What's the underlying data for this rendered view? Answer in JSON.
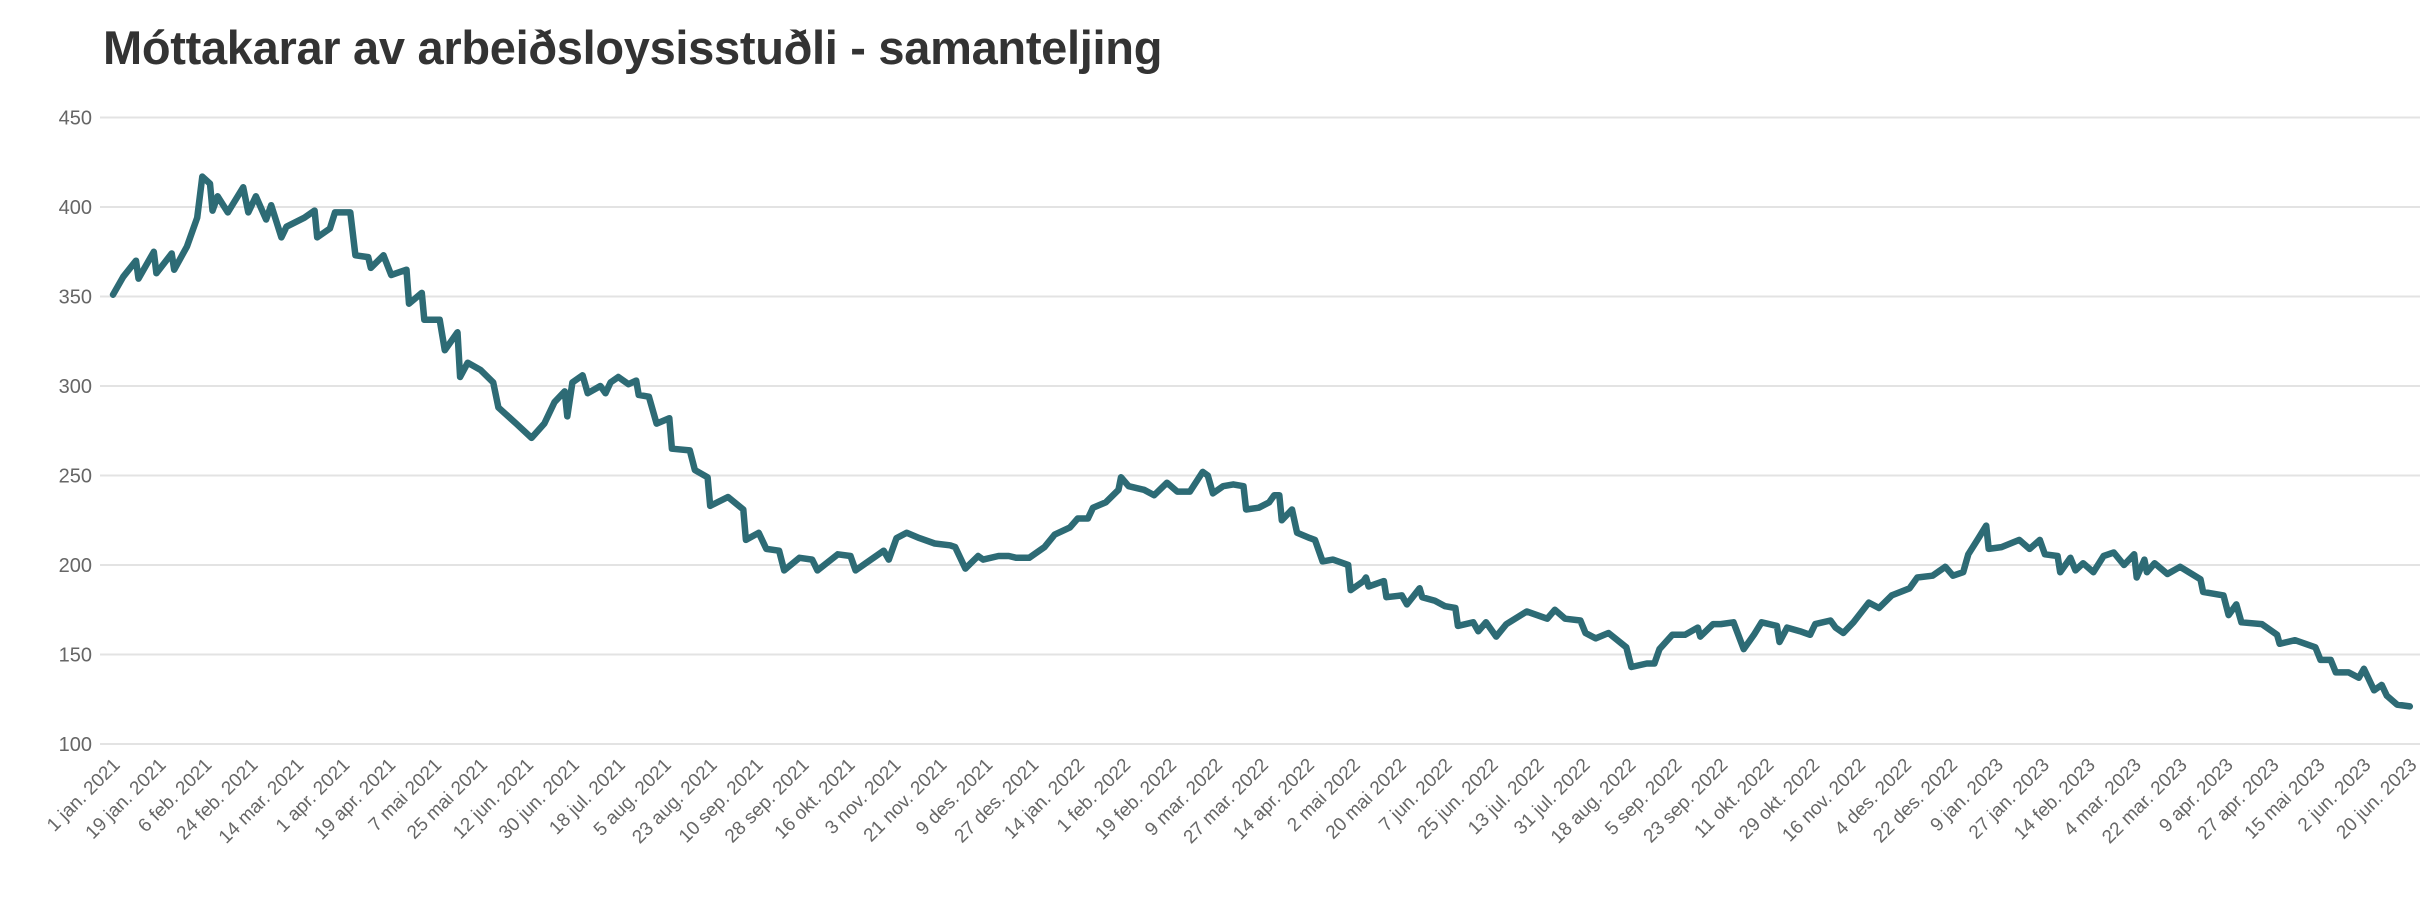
{
  "chart_data": {
    "type": "line",
    "title": "Móttakarar av arbeiðsloysisstuðli - samanteljing",
    "xlabel": "",
    "ylabel": "",
    "ylim": [
      100,
      450
    ],
    "yticks": [
      100,
      150,
      200,
      250,
      300,
      350,
      400,
      450
    ],
    "grid": true,
    "legend": "none",
    "line_color": "#2d6b75",
    "grid_color": "#e3e3e3",
    "xtick_dates": [
      "2021-01-01",
      "2021-01-19",
      "2021-02-06",
      "2021-02-24",
      "2021-03-14",
      "2021-04-01",
      "2021-04-19",
      "2021-05-07",
      "2021-05-25",
      "2021-06-12",
      "2021-06-30",
      "2021-07-18",
      "2021-08-05",
      "2021-08-23",
      "2021-09-10",
      "2021-09-28",
      "2021-10-16",
      "2021-11-03",
      "2021-11-21",
      "2021-12-09",
      "2021-12-27",
      "2022-01-14",
      "2022-02-01",
      "2022-02-19",
      "2022-03-09",
      "2022-03-27",
      "2022-04-14",
      "2022-05-02",
      "2022-05-20",
      "2022-06-07",
      "2022-06-25",
      "2022-07-13",
      "2022-07-31",
      "2022-08-18",
      "2022-09-05",
      "2022-09-23",
      "2022-10-11",
      "2022-10-29",
      "2022-11-16",
      "2022-12-04",
      "2022-12-22",
      "2023-01-09",
      "2023-01-27",
      "2023-02-14",
      "2023-03-04",
      "2023-03-22",
      "2023-04-09",
      "2023-04-27",
      "2023-05-15",
      "2023-06-02",
      "2023-06-20"
    ],
    "xtick_labels": [
      "1 jan. 2021",
      "19 jan. 2021",
      "6 feb. 2021",
      "24 feb. 2021",
      "14 mar. 2021",
      "1 apr. 2021",
      "19 apr. 2021",
      "7 mai 2021",
      "25 mai 2021",
      "12 jun. 2021",
      "30 jun. 2021",
      "18 jul. 2021",
      "5 aug. 2021",
      "23 aug. 2021",
      "10 sep. 2021",
      "28 sep. 2021",
      "16 okt. 2021",
      "3 nov. 2021",
      "21 nov. 2021",
      "9 des. 2021",
      "27 des. 2021",
      "14 jan. 2022",
      "1 feb. 2022",
      "19 feb. 2022",
      "9 mar. 2022",
      "27 mar. 2022",
      "14 apr. 2022",
      "2 mai 2022",
      "20 mai 2022",
      "7 jun. 2022",
      "25 jun. 2022",
      "13 jul. 2022",
      "31 jul. 2022",
      "18 aug. 2022",
      "5 sep. 2022",
      "23 sep. 2022",
      "11 okt. 2022",
      "29 okt. 2022",
      "16 nov. 2022",
      "4 des. 2022",
      "22 des. 2022",
      "9 jan. 2023",
      "27 jan. 2023",
      "14 feb. 2023",
      "4 mar. 2023",
      "22 mar. 2023",
      "9 apr. 2023",
      "27 apr. 2023",
      "15 mai 2023",
      "2 jun. 2023",
      "20 jun. 2023"
    ],
    "x": [
      "2021-01-01",
      "2021-01-05",
      "2021-01-10",
      "2021-01-11",
      "2021-01-17",
      "2021-01-18",
      "2021-01-24",
      "2021-01-25",
      "2021-01-30",
      "2021-02-03",
      "2021-02-05",
      "2021-02-08",
      "2021-02-09",
      "2021-02-11",
      "2021-02-15",
      "2021-02-21",
      "2021-02-23",
      "2021-02-26",
      "2021-03-02",
      "2021-03-04",
      "2021-03-08",
      "2021-03-10",
      "2021-03-17",
      "2021-03-21",
      "2021-03-22",
      "2021-03-27",
      "2021-03-29",
      "2021-04-04",
      "2021-04-06",
      "2021-04-11",
      "2021-04-12",
      "2021-04-17",
      "2021-04-20",
      "2021-04-26",
      "2021-04-27",
      "2021-05-02",
      "2021-05-03",
      "2021-05-09",
      "2021-05-11",
      "2021-05-16",
      "2021-05-17",
      "2021-05-20",
      "2021-05-25",
      "2021-05-30",
      "2021-06-01",
      "2021-06-08",
      "2021-06-14",
      "2021-06-19",
      "2021-06-23",
      "2021-06-27",
      "2021-06-28",
      "2021-06-30",
      "2021-07-04",
      "2021-07-06",
      "2021-07-11",
      "2021-07-13",
      "2021-07-15",
      "2021-07-18",
      "2021-07-22",
      "2021-07-25",
      "2021-07-26",
      "2021-07-30",
      "2021-08-02",
      "2021-08-07",
      "2021-08-08",
      "2021-08-15",
      "2021-08-17",
      "2021-08-22",
      "2021-08-23",
      "2021-08-30",
      "2021-09-05",
      "2021-09-06",
      "2021-09-11",
      "2021-09-14",
      "2021-09-19",
      "2021-09-21",
      "2021-09-27",
      "2021-10-02",
      "2021-10-04",
      "2021-10-12",
      "2021-10-17",
      "2021-10-19",
      "2021-10-23",
      "2021-10-30",
      "2021-11-01",
      "2021-11-04",
      "2021-11-08",
      "2021-11-13",
      "2021-11-19",
      "2021-11-25",
      "2021-11-27",
      "2021-12-01",
      "2021-12-06",
      "2021-12-08",
      "2021-12-14",
      "2021-12-18",
      "2021-12-21",
      "2021-12-26",
      "2022-01-01",
      "2022-01-05",
      "2022-01-11",
      "2022-01-14",
      "2022-01-18",
      "2022-01-20",
      "2022-01-25",
      "2022-01-30",
      "2022-01-31",
      "2022-02-03",
      "2022-02-09",
      "2022-02-13",
      "2022-02-18",
      "2022-02-22",
      "2022-02-27",
      "2022-03-04",
      "2022-03-06",
      "2022-03-08",
      "2022-03-12",
      "2022-03-16",
      "2022-03-20",
      "2022-03-21",
      "2022-03-26",
      "2022-03-30",
      "2022-04-01",
      "2022-04-03",
      "2022-04-04",
      "2022-04-08",
      "2022-04-10",
      "2022-04-15",
      "2022-04-17",
      "2022-04-20",
      "2022-04-24",
      "2022-04-30",
      "2022-05-01",
      "2022-05-06",
      "2022-05-07",
      "2022-05-08",
      "2022-05-14",
      "2022-05-15",
      "2022-05-21",
      "2022-05-23",
      "2022-05-28",
      "2022-05-29",
      "2022-06-03",
      "2022-06-07",
      "2022-06-11",
      "2022-06-12",
      "2022-06-18",
      "2022-06-20",
      "2022-06-23",
      "2022-06-27",
      "2022-07-01",
      "2022-07-09",
      "2022-07-17",
      "2022-07-20",
      "2022-07-24",
      "2022-07-30",
      "2022-08-01",
      "2022-08-05",
      "2022-08-10",
      "2022-08-17",
      "2022-08-19",
      "2022-08-25",
      "2022-08-28",
      "2022-08-30",
      "2022-09-04",
      "2022-09-09",
      "2022-09-14",
      "2022-09-15",
      "2022-09-20",
      "2022-09-23",
      "2022-09-28",
      "2022-10-02",
      "2022-10-06",
      "2022-10-09",
      "2022-10-15",
      "2022-10-16",
      "2022-10-19",
      "2022-10-24",
      "2022-10-28",
      "2022-10-30",
      "2022-11-05",
      "2022-11-07",
      "2022-11-10",
      "2022-11-14",
      "2022-11-20",
      "2022-11-24",
      "2022-11-29",
      "2022-12-06",
      "2022-12-09",
      "2022-12-15",
      "2022-12-20",
      "2022-12-23",
      "2022-12-27",
      "2022-12-29",
      "2023-01-02",
      "2023-01-05",
      "2023-01-06",
      "2023-01-11",
      "2023-01-18",
      "2023-01-22",
      "2023-01-26",
      "2023-01-28",
      "2023-02-02",
      "2023-02-03",
      "2023-02-07",
      "2023-02-09",
      "2023-02-12",
      "2023-02-16",
      "2023-02-20",
      "2023-02-24",
      "2023-02-28",
      "2023-03-04",
      "2023-03-05",
      "2023-03-08",
      "2023-03-09",
      "2023-03-12",
      "2023-03-17",
      "2023-03-22",
      "2023-03-30",
      "2023-03-31",
      "2023-04-08",
      "2023-04-10",
      "2023-04-13",
      "2023-04-15",
      "2023-04-23",
      "2023-04-29",
      "2023-04-30",
      "2023-05-06",
      "2023-05-14",
      "2023-05-16",
      "2023-05-20",
      "2023-05-22",
      "2023-05-27",
      "2023-05-31",
      "2023-06-02",
      "2023-06-06",
      "2023-06-09",
      "2023-06-11",
      "2023-06-15",
      "2023-06-20"
    ],
    "values": [
      351,
      361,
      370,
      360,
      375,
      363,
      374,
      365,
      378,
      394,
      417,
      413,
      398,
      406,
      397,
      411,
      397,
      406,
      393,
      401,
      383,
      389,
      394,
      398,
      383,
      388,
      397,
      397,
      373,
      372,
      366,
      373,
      362,
      365,
      346,
      352,
      337,
      337,
      320,
      330,
      305,
      313,
      309,
      302,
      288,
      279,
      271,
      279,
      291,
      297,
      283,
      302,
      306,
      296,
      300,
      296,
      302,
      305,
      301,
      303,
      295,
      294,
      279,
      282,
      265,
      264,
      253,
      249,
      233,
      238,
      231,
      214,
      218,
      209,
      208,
      197,
      204,
      203,
      197,
      206,
      205,
      197,
      201,
      208,
      203,
      215,
      218,
      215,
      212,
      211,
      210,
      198,
      205,
      203,
      205,
      205,
      204,
      204,
      210,
      217,
      221,
      226,
      226,
      232,
      235,
      242,
      249,
      244,
      242,
      239,
      246,
      241,
      241,
      252,
      250,
      240,
      244,
      245,
      244,
      231,
      232,
      235,
      239,
      239,
      225,
      231,
      218,
      215,
      214,
      202,
      203,
      200,
      186,
      191,
      193,
      188,
      191,
      182,
      183,
      178,
      187,
      182,
      180,
      177,
      176,
      166,
      168,
      163,
      168,
      160,
      167,
      174,
      170,
      175,
      170,
      169,
      162,
      159,
      162,
      154,
      143,
      145,
      145,
      153,
      161,
      161,
      165,
      160,
      167,
      167,
      168,
      153,
      161,
      168,
      166,
      157,
      165,
      163,
      161,
      167,
      169,
      165,
      162,
      168,
      179,
      176,
      183,
      187,
      193,
      194,
      199,
      194,
      196,
      206,
      215,
      222,
      209,
      210,
      214,
      209,
      214,
      206,
      205,
      196,
      204,
      197,
      201,
      196,
      205,
      207,
      200,
      206,
      193,
      203,
      196,
      201,
      195,
      199,
      192,
      185,
      183,
      172,
      178,
      168,
      167,
      161,
      156,
      158,
      154,
      147,
      147,
      140,
      140,
      137,
      142,
      130,
      133,
      127,
      122,
      121
    ]
  }
}
